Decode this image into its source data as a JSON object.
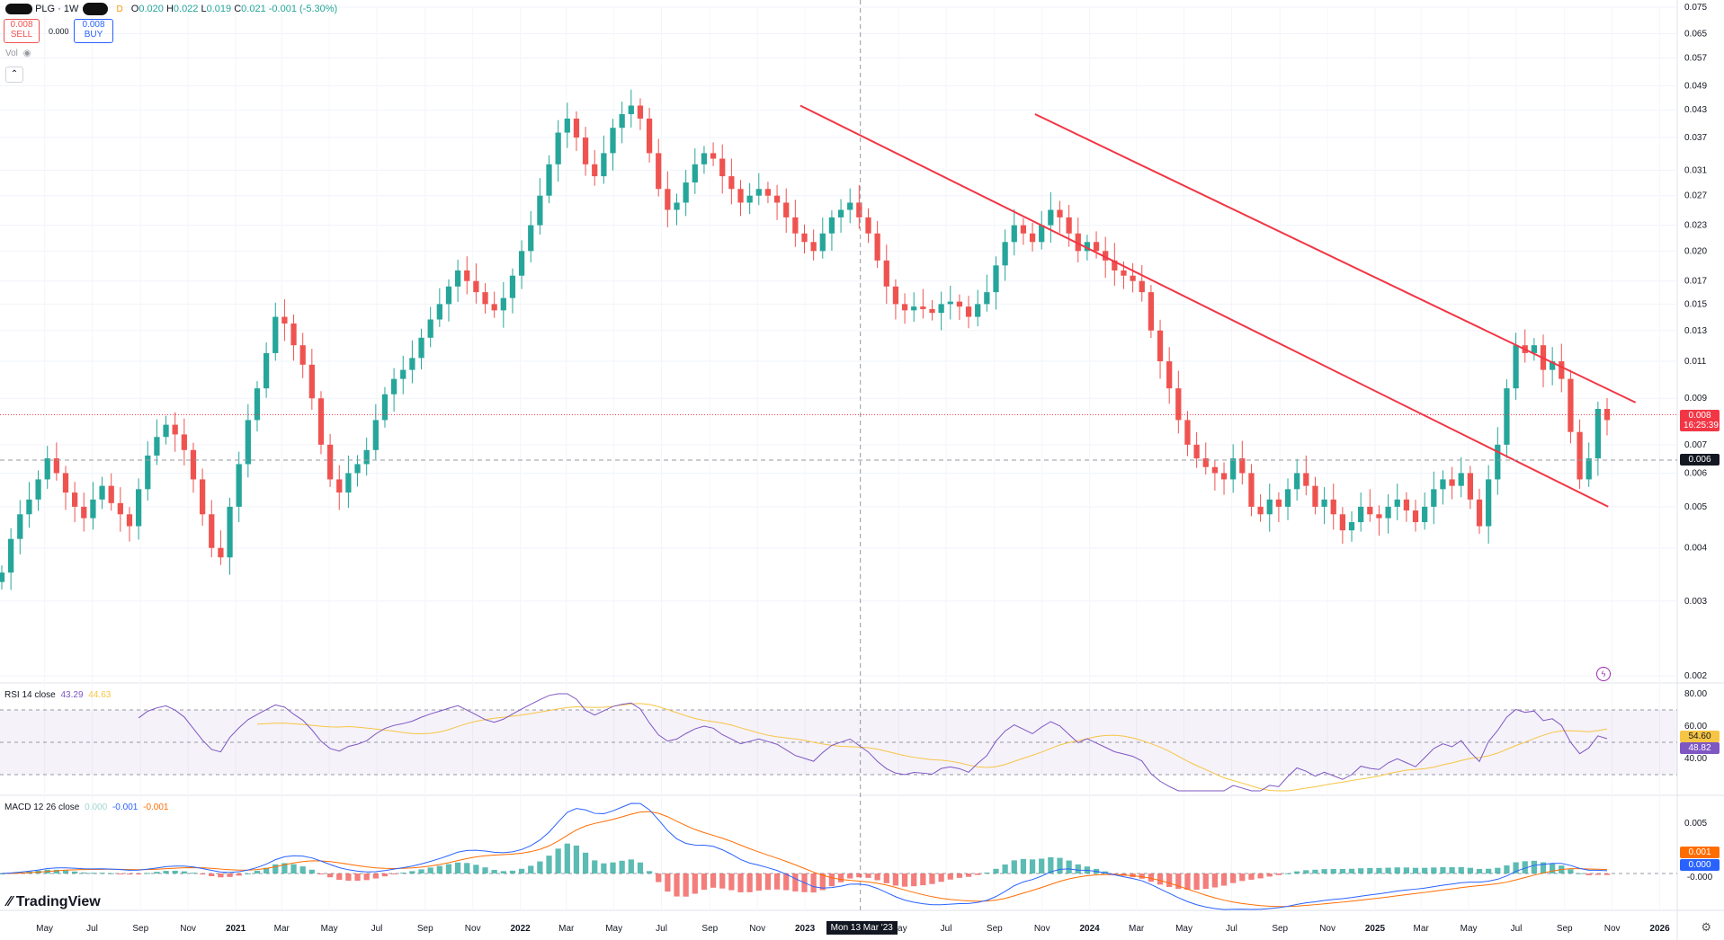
{
  "header": {
    "symbol": "PLG",
    "interval": "1W",
    "flag": "D",
    "ohlc": [
      {
        "k": "O",
        "v": "0.020"
      },
      {
        "k": "H",
        "v": "0.022"
      },
      {
        "k": "L",
        "v": "0.019"
      },
      {
        "k": "C",
        "v": "0.021"
      }
    ],
    "change": "-0.001 (-5.30%)",
    "sell_price": "0.008",
    "sell_label": "SELL",
    "spread": "0.000",
    "buy_price": "0.008",
    "buy_label": "BUY",
    "vol_label": "Vol"
  },
  "price_axis": {
    "ticks": [
      "0.075",
      "0.065",
      "0.057",
      "0.049",
      "0.043",
      "0.037",
      "0.031",
      "0.027",
      "0.023",
      "0.020",
      "0.017",
      "0.015",
      "0.013",
      "0.011",
      "0.009",
      "0.007",
      "0.006",
      "0.005",
      "0.004",
      "0.003",
      "0.002"
    ],
    "last_price": "0.008",
    "countdown": "16:25:39",
    "crosshair_price": "0.006"
  },
  "time_axis": {
    "labels": [
      "May",
      "Jul",
      "Sep",
      "Nov",
      "2021",
      "Mar",
      "May",
      "Jul",
      "Sep",
      "Nov",
      "2022",
      "Mar",
      "May",
      "Jul",
      "Sep",
      "Nov",
      "2023",
      "May",
      "Jul",
      "Sep",
      "Nov",
      "2024",
      "Mar",
      "May",
      "Jul",
      "Sep",
      "Nov",
      "2025",
      "Mar",
      "May",
      "Jul",
      "Sep",
      "Nov",
      "2026"
    ],
    "crosshair_date": "Mon 13 Mar '23"
  },
  "rsi": {
    "label": "RSI 14 close",
    "value": "43.29",
    "ma_value": "44.63",
    "axis": [
      "80.00",
      "60.00",
      "40.00"
    ],
    "tag_ma": "54.60",
    "tag_rsi": "48.82"
  },
  "macd": {
    "label": "MACD 12 26 close",
    "hist": "0.000",
    "macd": "-0.001",
    "signal": "-0.001",
    "axis": [
      "0.005"
    ],
    "tag_hist": "0.001",
    "tag_macd": "0.000",
    "tag_zero": "-0.000"
  },
  "brand": "TradingView",
  "colors": {
    "up": "#26a69a",
    "down": "#ef5350",
    "trendline": "#f23645",
    "rsi": "#7e57c2",
    "rsi_ma": "#f7c544",
    "macd": "#2962ff",
    "signal": "#ff6d00"
  },
  "chart_data": {
    "type": "candlestick",
    "interval": "1W",
    "scale": "log",
    "ylim": [
      0.002,
      0.075
    ],
    "x_start": "2020-04-13",
    "weekly_closes_approx": [
      0.0035,
      0.0042,
      0.0048,
      0.0052,
      0.0058,
      0.0065,
      0.006,
      0.0054,
      0.005,
      0.0047,
      0.0052,
      0.0056,
      0.0051,
      0.0048,
      0.0045,
      0.0055,
      0.0066,
      0.0073,
      0.0078,
      0.0074,
      0.0068,
      0.0058,
      0.0048,
      0.004,
      0.0038,
      0.005,
      0.0063,
      0.008,
      0.0095,
      0.0115,
      0.014,
      0.0135,
      0.012,
      0.0108,
      0.009,
      0.007,
      0.0058,
      0.0054,
      0.006,
      0.0063,
      0.0068,
      0.008,
      0.0092,
      0.01,
      0.0105,
      0.0112,
      0.0125,
      0.0138,
      0.015,
      0.0165,
      0.018,
      0.017,
      0.016,
      0.015,
      0.0145,
      0.0155,
      0.0175,
      0.02,
      0.023,
      0.027,
      0.032,
      0.038,
      0.041,
      0.037,
      0.032,
      0.03,
      0.034,
      0.039,
      0.042,
      0.044,
      0.041,
      0.034,
      0.028,
      0.025,
      0.026,
      0.029,
      0.032,
      0.034,
      0.033,
      0.03,
      0.028,
      0.026,
      0.027,
      0.028,
      0.027,
      0.026,
      0.024,
      0.022,
      0.021,
      0.02,
      0.022,
      0.024,
      0.025,
      0.026,
      0.024,
      0.022,
      0.019,
      0.0165,
      0.015,
      0.0145,
      0.0148,
      0.0146,
      0.0143,
      0.015,
      0.0152,
      0.0148,
      0.014,
      0.015,
      0.016,
      0.0185,
      0.021,
      0.023,
      0.022,
      0.021,
      0.023,
      0.025,
      0.024,
      0.022,
      0.02,
      0.021,
      0.02,
      0.019,
      0.018,
      0.0175,
      0.017,
      0.016,
      0.013,
      0.011,
      0.0095,
      0.008,
      0.007,
      0.0065,
      0.0062,
      0.006,
      0.0058,
      0.0065,
      0.006,
      0.005,
      0.0048,
      0.0052,
      0.005,
      0.0055,
      0.006,
      0.0056,
      0.005,
      0.0052,
      0.0048,
      0.0044,
      0.0046,
      0.005,
      0.0048,
      0.0047,
      0.005,
      0.0052,
      0.0049,
      0.0046,
      0.005,
      0.0055,
      0.0058,
      0.0056,
      0.006,
      0.0052,
      0.0045,
      0.0058,
      0.007,
      0.0095,
      0.012,
      0.0115,
      0.012,
      0.0105,
      0.011,
      0.01,
      0.0075,
      0.0058,
      0.0065,
      0.0085,
      0.008
    ],
    "trendlines": [
      {
        "from": [
          "2022-12-26",
          0.044
        ],
        "to": [
          "2025-10-27",
          0.005
        ]
      },
      {
        "from": [
          "2023-10-23",
          0.042
        ],
        "to": [
          "2025-12-01",
          0.0088
        ]
      }
    ],
    "rsi": {
      "period": 14,
      "bands": [
        70,
        30
      ],
      "ylim": [
        20,
        80
      ]
    },
    "macd": {
      "fast": 12,
      "slow": 26,
      "source": "close"
    }
  }
}
